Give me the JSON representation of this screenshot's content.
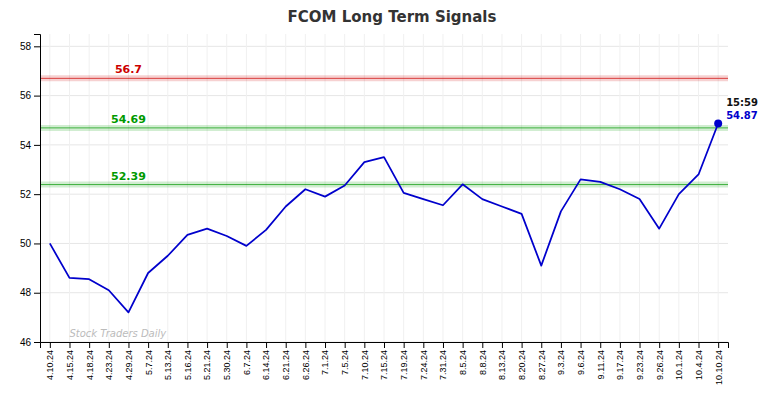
{
  "chart_data": {
    "type": "line",
    "title": "FCOM Long Term Signals",
    "categories": [
      "4.10.24",
      "4.15.24",
      "4.18.24",
      "4.23.24",
      "4.29.24",
      "5.7.24",
      "5.13.24",
      "5.16.24",
      "5.21.24",
      "5.30.24",
      "6.7.24",
      "6.14.24",
      "6.21.24",
      "6.26.24",
      "7.1.24",
      "7.5.24",
      "7.10.24",
      "7.15.24",
      "7.19.24",
      "7.24.24",
      "7.31.24",
      "8.5.24",
      "8.8.24",
      "8.13.24",
      "8.20.24",
      "8.27.24",
      "9.3.24",
      "9.6.24",
      "9.11.24",
      "9.17.24",
      "9.23.24",
      "9.26.24",
      "10.1.24",
      "10.4.24",
      "10.10.24"
    ],
    "values": [
      50.0,
      48.6,
      48.55,
      48.1,
      47.2,
      48.8,
      49.5,
      50.35,
      50.6,
      50.3,
      49.9,
      50.55,
      51.5,
      52.2,
      51.9,
      52.35,
      53.3,
      53.5,
      52.05,
      51.8,
      51.55,
      52.4,
      51.8,
      51.5,
      51.2,
      49.1,
      51.3,
      52.6,
      52.5,
      52.2,
      51.8,
      50.6,
      52.0,
      52.8,
      54.87
    ],
    "color": "#0000cc",
    "ylim": [
      46,
      58.5
    ],
    "yticks": [
      46,
      48,
      50,
      52,
      54,
      56,
      58
    ],
    "grid": true,
    "reference_lines": [
      {
        "value": 56.7,
        "color": "#cc0000"
      },
      {
        "value": 54.69,
        "color": "#009900"
      },
      {
        "value": 52.39,
        "color": "#009900"
      }
    ],
    "annotations": [
      {
        "text": "Stock Traders Daily",
        "color": "#bbbbbb"
      },
      {
        "text": "15:59",
        "x": "10.10.24",
        "value": 54.87,
        "marker": "circle",
        "color": "#0000cc"
      }
    ]
  }
}
